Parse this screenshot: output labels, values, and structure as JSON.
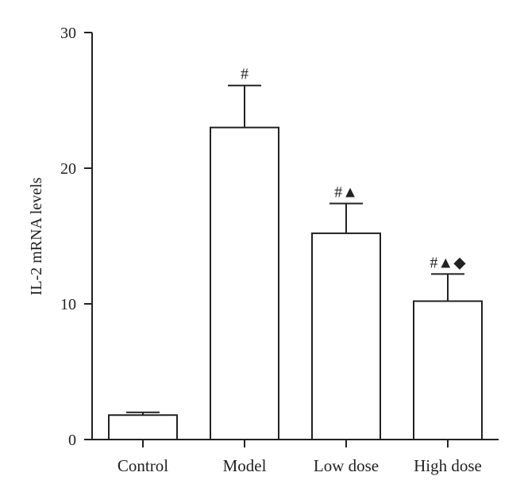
{
  "chart_data": {
    "type": "bar",
    "title": "",
    "xlabel": "",
    "ylabel": "IL-2 mRNA levels",
    "ylim": [
      0,
      30
    ],
    "yticks": [
      0,
      10,
      20,
      30
    ],
    "grid": false,
    "categories": [
      "Control",
      "Model",
      "Low dose",
      "High dose"
    ],
    "values": [
      1.8,
      23.0,
      15.2,
      10.2
    ],
    "error_upper": [
      0.2,
      3.1,
      2.2,
      2.0
    ],
    "annotations": [
      "",
      "#",
      "#▲",
      "#▲◆"
    ],
    "colors": {
      "bar_fill": "#ffffff",
      "stroke": "#222222"
    }
  }
}
